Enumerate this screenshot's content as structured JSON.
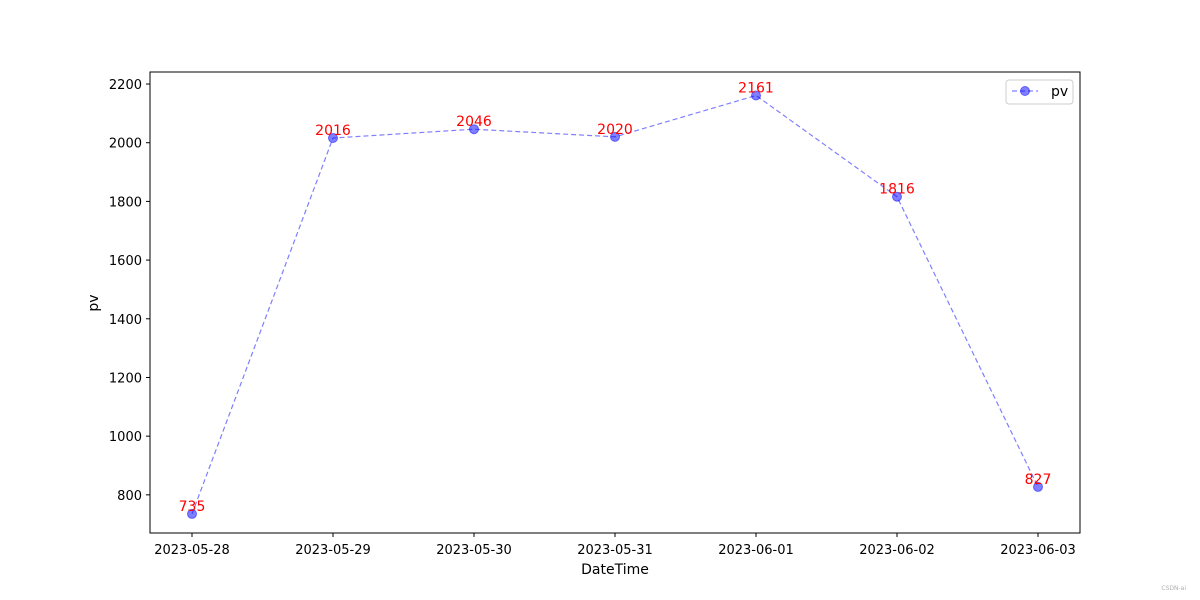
{
  "chart_data": {
    "type": "line",
    "title": "",
    "xlabel": "DateTime",
    "ylabel": "pv",
    "categories": [
      "2023-05-28",
      "2023-05-29",
      "2023-05-30",
      "2023-05-31",
      "2023-06-01",
      "2023-06-02",
      "2023-06-03"
    ],
    "series": [
      {
        "name": "pv",
        "values": [
          735,
          2016,
          2046,
          2020,
          2161,
          1816,
          827
        ],
        "color": "#0000ff",
        "line_style": "dashed",
        "marker": "circle"
      }
    ],
    "data_labels": [
      "735",
      "2016",
      "2046",
      "2020",
      "2161",
      "1816",
      "827"
    ],
    "data_label_color": "#ff0000",
    "ylim": [
      670,
      2241
    ],
    "yticks": [
      800,
      1000,
      1200,
      1400,
      1600,
      1800,
      2000,
      2200
    ],
    "grid": false,
    "legend_position": "top-right"
  },
  "watermark": "CSDN-ai"
}
